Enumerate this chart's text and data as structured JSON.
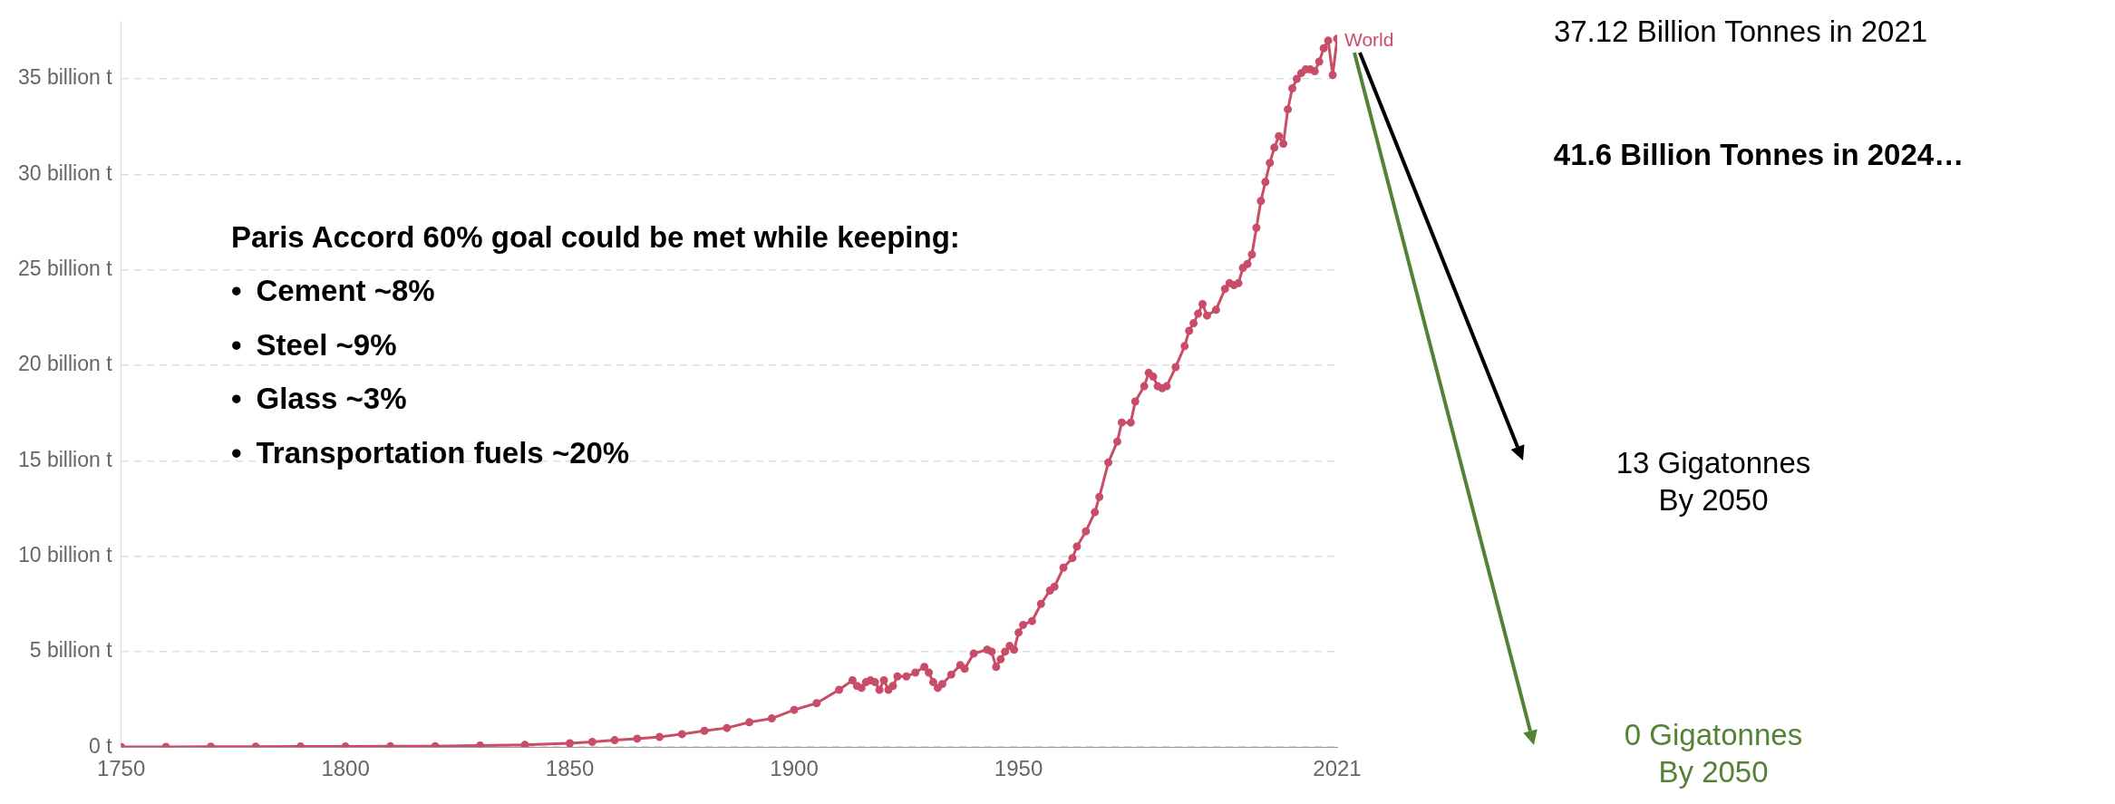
{
  "chart_data": {
    "type": "line",
    "xlim": [
      1750,
      2021
    ],
    "xticks": [
      1750,
      1800,
      1850,
      1900,
      1950,
      2021
    ],
    "ylim": [
      0,
      38
    ],
    "yticks": [
      {
        "value": 0,
        "label": "0 t"
      },
      {
        "value": 5,
        "label": "5 billion t"
      },
      {
        "value": 10,
        "label": "10 billion t"
      },
      {
        "value": 15,
        "label": "15 billion t"
      },
      {
        "value": 20,
        "label": "20 billion t"
      },
      {
        "value": 25,
        "label": "25 billion t"
      },
      {
        "value": 30,
        "label": "30 billion t"
      },
      {
        "value": 35,
        "label": "35 billion t"
      }
    ],
    "grid": "y",
    "marker": "circle",
    "line_style": "solid",
    "legend": false,
    "series": [
      {
        "name": "World",
        "color": "#c94d68",
        "x": [
          1750,
          1760,
          1770,
          1780,
          1790,
          1800,
          1810,
          1820,
          1830,
          1840,
          1850,
          1855,
          1860,
          1865,
          1870,
          1875,
          1880,
          1885,
          1890,
          1895,
          1900,
          1905,
          1910,
          1913,
          1914,
          1915,
          1916,
          1917,
          1918,
          1919,
          1920,
          1921,
          1922,
          1923,
          1925,
          1927,
          1929,
          1930,
          1931,
          1932,
          1933,
          1935,
          1937,
          1938,
          1940,
          1943,
          1944,
          1945,
          1946,
          1947,
          1948,
          1949,
          1950,
          1951,
          1953,
          1955,
          1957,
          1958,
          1960,
          1962,
          1963,
          1965,
          1967,
          1968,
          1970,
          1972,
          1973,
          1975,
          1976,
          1978,
          1979,
          1980,
          1981,
          1982,
          1983,
          1985,
          1987,
          1988,
          1989,
          1990,
          1991,
          1992,
          1994,
          1996,
          1997,
          1998,
          1999,
          2000,
          2001,
          2002,
          2003,
          2004,
          2005,
          2006,
          2007,
          2008,
          2009,
          2010,
          2011,
          2012,
          2013,
          2014,
          2015,
          2016,
          2017,
          2018,
          2019,
          2020,
          2021
        ],
        "values": [
          0.01,
          0.01,
          0.02,
          0.02,
          0.03,
          0.03,
          0.04,
          0.05,
          0.08,
          0.12,
          0.2,
          0.27,
          0.36,
          0.44,
          0.53,
          0.68,
          0.85,
          1.0,
          1.3,
          1.5,
          1.95,
          2.3,
          3.0,
          3.5,
          3.2,
          3.1,
          3.4,
          3.5,
          3.4,
          3.0,
          3.5,
          3.0,
          3.2,
          3.7,
          3.7,
          3.9,
          4.2,
          3.9,
          3.4,
          3.1,
          3.3,
          3.8,
          4.3,
          4.1,
          4.9,
          5.1,
          5.0,
          4.2,
          4.6,
          5.0,
          5.3,
          5.1,
          6.0,
          6.4,
          6.6,
          7.5,
          8.2,
          8.4,
          9.4,
          9.9,
          10.5,
          11.3,
          12.3,
          13.1,
          14.9,
          16.0,
          17.0,
          17.0,
          18.1,
          18.9,
          19.6,
          19.4,
          18.9,
          18.8,
          18.9,
          19.9,
          21.0,
          21.8,
          22.2,
          22.7,
          23.2,
          22.6,
          22.9,
          24.0,
          24.3,
          24.2,
          24.3,
          25.1,
          25.3,
          25.8,
          27.2,
          28.6,
          29.6,
          30.6,
          31.4,
          32.0,
          31.6,
          33.4,
          34.5,
          35.0,
          35.3,
          35.5,
          35.5,
          35.4,
          35.9,
          36.6,
          37.0,
          35.2,
          37.1
        ]
      }
    ],
    "annotations": [
      "Paris Accord 60% goal could be met while keeping:",
      "•\tCement ~8%",
      "•\tSteel ~9%",
      "•\tGlass ~3%",
      "•\tTransportation fuels ~20%",
      "37.12 Billion Tonnes in 2021",
      "41.6 Billion Tonnes in 2024…",
      "13 Gigatonnes\nBy 2050",
      "0 Gigatonnes\nBy 2050"
    ]
  }
}
